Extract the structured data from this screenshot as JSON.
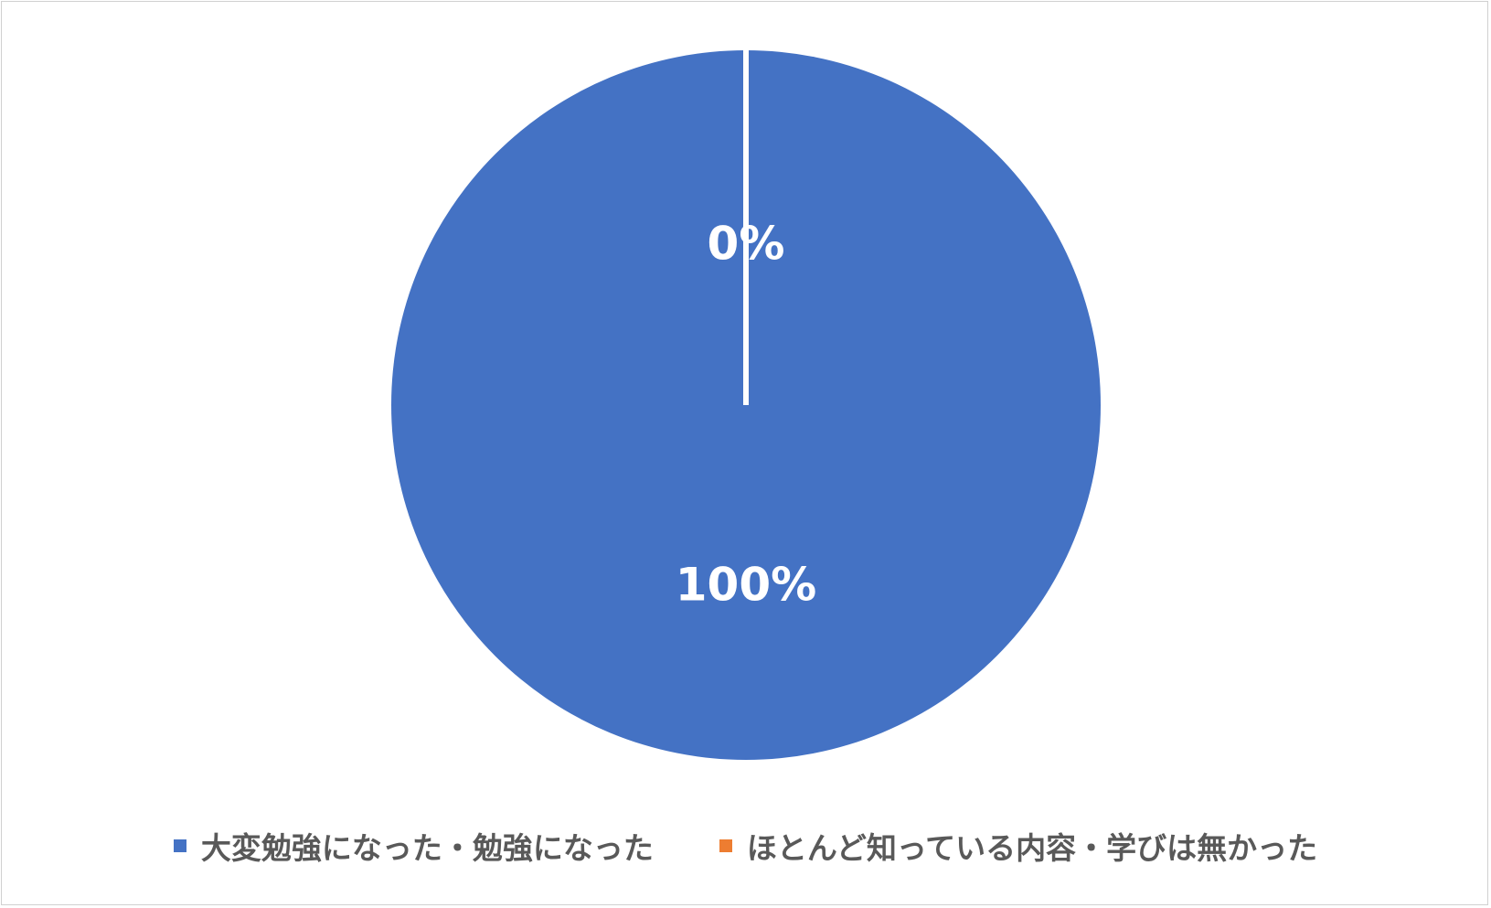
{
  "chart_data": {
    "type": "pie",
    "categories": [
      "大変勉強になった・勉強になった",
      "ほとんど知っている内容・学びは無かった"
    ],
    "values": [
      100,
      0
    ],
    "data_labels": [
      "100%",
      "0%"
    ],
    "colors": [
      "#4472c4",
      "#ed7d31"
    ],
    "legend_position": "bottom",
    "start_angle": "12 o'clock, clockwise"
  }
}
